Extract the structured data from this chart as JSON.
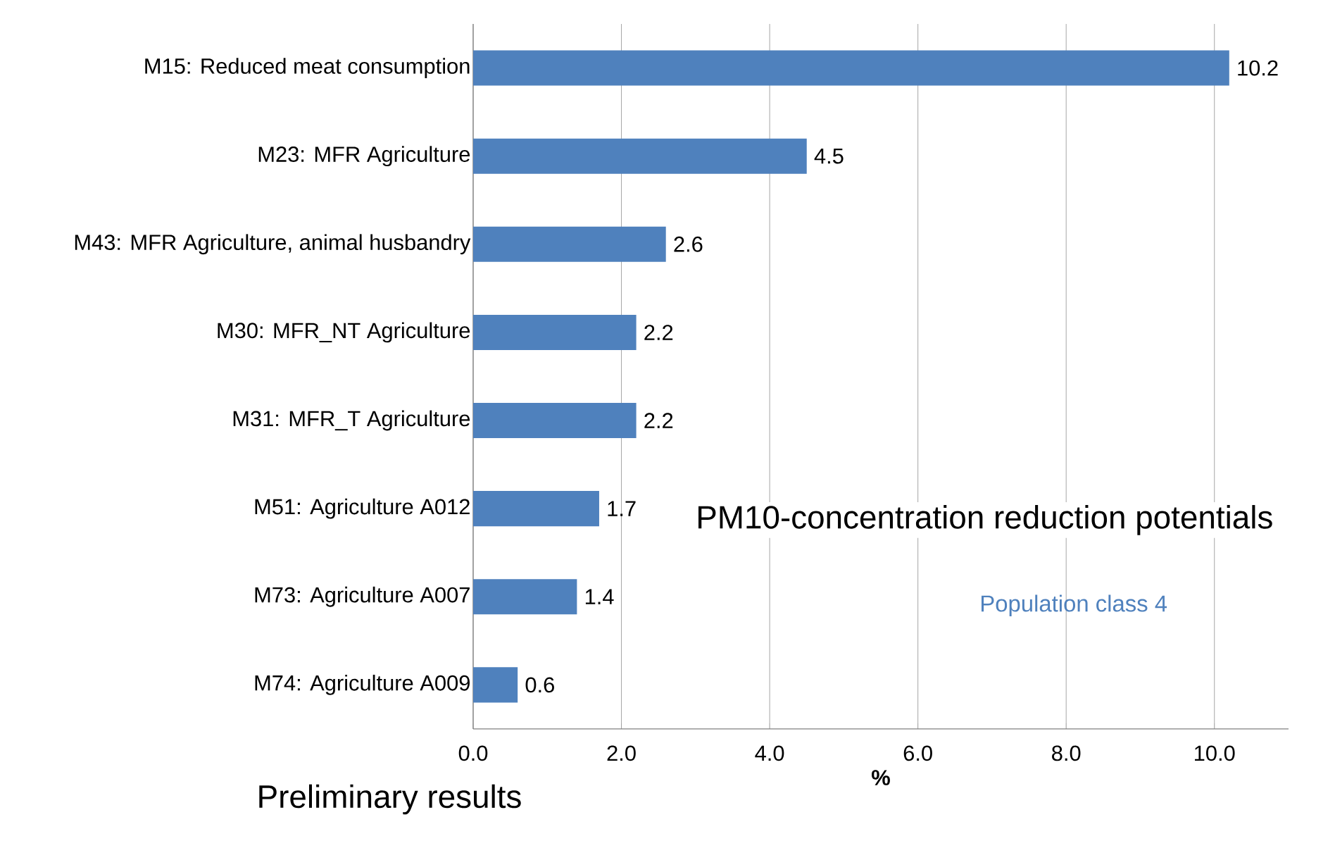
{
  "chart_data": {
    "type": "bar",
    "orientation": "horizontal",
    "categories": [
      "M15: Reduced meat consumption",
      "M23: MFR Agriculture",
      "M43: MFR Agriculture, animal husbandry",
      "M30: MFR_NT Agriculture",
      "M31: MFR_T Agriculture",
      "M51: Agriculture A012",
      "M73: Agriculture A007",
      "M74: Agriculture A009"
    ],
    "values": [
      10.2,
      4.5,
      2.6,
      2.2,
      2.2,
      1.7,
      1.4,
      0.6
    ],
    "color": "#4f81bd",
    "data_labels": true,
    "grid": "x",
    "xlabel": "%",
    "xlim": [
      0,
      11
    ],
    "xticks": [
      {
        "value": 0,
        "label": "0.0"
      },
      {
        "value": 2,
        "label": "2.0"
      },
      {
        "value": 4,
        "label": "4.0"
      },
      {
        "value": 6,
        "label": "6.0"
      },
      {
        "value": 8,
        "label": "8.0"
      },
      {
        "value": 10,
        "label": "10.0"
      }
    ],
    "annotations": [
      "PM10-concentration reduction potentials",
      "Population class 4",
      "Preliminary results"
    ]
  }
}
